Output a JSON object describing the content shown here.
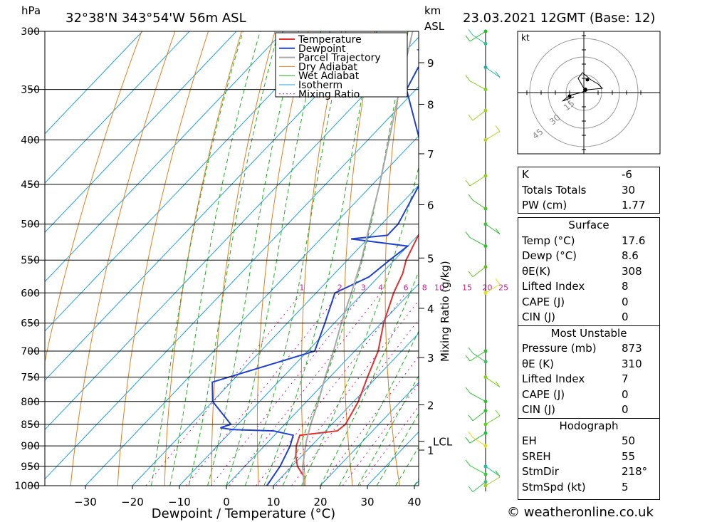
{
  "header": {
    "location": "32°38'N  343°54'W  56m  ASL",
    "datetime": "23.03.2021  12GMT  (Base: 12)",
    "pressure_unit": "hPa",
    "height_unit_top": "km",
    "height_unit_bottom": "ASL"
  },
  "colors": {
    "temperature": "#e03030",
    "dewpoint": "#2040d0",
    "parcel": "#a8a8a8",
    "dry_adiabat": "#e08020",
    "wet_adiabat": "#20b020",
    "isotherm": "#20a0e0",
    "mixing_ratio": "#d02090"
  },
  "chart_data": {
    "type": "line",
    "xlabel": "Dewpoint / Temperature (°C)",
    "ylabel_right": "Mixing Ratio (g/kg)",
    "xlim": [
      -40,
      40
    ],
    "ylim": [
      1000,
      300
    ],
    "y_scale": "log",
    "pressure_ticks": [
      300,
      350,
      400,
      450,
      500,
      550,
      600,
      650,
      700,
      750,
      800,
      850,
      900,
      950,
      1000
    ],
    "temp_ticks": [
      -30,
      -20,
      -10,
      0,
      10,
      20,
      30,
      40
    ],
    "height_km_ticks": [
      {
        "label": "9",
        "p": 326
      },
      {
        "label": "8",
        "p": 364
      },
      {
        "label": "7",
        "p": 415
      },
      {
        "label": "6",
        "p": 475
      },
      {
        "label": "5",
        "p": 547
      },
      {
        "label": "4",
        "p": 625
      },
      {
        "label": "3",
        "p": 712
      },
      {
        "label": "2",
        "p": 807
      },
      {
        "label": "1",
        "p": 910
      }
    ],
    "lcl": {
      "label": "LCL",
      "p": 889
    },
    "mixing_ratio_labels": [
      "1",
      "2",
      "3",
      "4",
      "6",
      "8",
      "10",
      "15",
      "20",
      "25"
    ],
    "legend": [
      "Temperature",
      "Dewpoint",
      "Parcel Trajectory",
      "Dry Adiabat",
      "Wet Adiabat",
      "Isotherm",
      "Mixing Ratio"
    ],
    "series": [
      {
        "name": "Temperature",
        "points": [
          [
            1000,
            16.5
          ],
          [
            975,
            14.5
          ],
          [
            950,
            11.2
          ],
          [
            925,
            8.8
          ],
          [
            900,
            6.8
          ],
          [
            875,
            5.4
          ],
          [
            865,
            12.5
          ],
          [
            850,
            12.9
          ],
          [
            800,
            11.0
          ],
          [
            750,
            8.0
          ],
          [
            700,
            5.0
          ],
          [
            650,
            0.5
          ],
          [
            600,
            -3.5
          ],
          [
            570,
            -5.5
          ],
          [
            550,
            -7.5
          ],
          [
            500,
            -11.0
          ],
          [
            450,
            -16.0
          ],
          [
            400,
            -22.5
          ],
          [
            350,
            -31.0
          ],
          [
            320,
            -37.0
          ],
          [
            300,
            -40.5
          ]
        ]
      },
      {
        "name": "Dewpoint",
        "points": [
          [
            1000,
            8.6
          ],
          [
            950,
            7.5
          ],
          [
            900,
            5.5
          ],
          [
            875,
            4.0
          ],
          [
            865,
            -1.0
          ],
          [
            862,
            -10.0
          ],
          [
            858,
            -13.0
          ],
          [
            855,
            -12.5
          ],
          [
            850,
            -11.5
          ],
          [
            800,
            -20.0
          ],
          [
            760,
            -24.0
          ],
          [
            700,
            -8.5
          ],
          [
            650,
            -12.0
          ],
          [
            600,
            -16.0
          ],
          [
            575,
            -12.0
          ],
          [
            550,
            -11.0
          ],
          [
            530,
            -10.0
          ],
          [
            520,
            -23.5
          ],
          [
            515,
            -16.5
          ],
          [
            500,
            -16.5
          ],
          [
            450,
            -20.0
          ],
          [
            400,
            -29.0
          ],
          [
            350,
            -42.0
          ],
          [
            330,
            -44.0
          ],
          [
            320,
            -42.0
          ],
          [
            315,
            -47.5
          ],
          [
            305,
            -43.0
          ],
          [
            300,
            -47.0
          ]
        ]
      },
      {
        "name": "Parcel Trajectory",
        "points": [
          [
            1000,
            16.5
          ],
          [
            950,
            12.3
          ],
          [
            900,
            8.8
          ],
          [
            889,
            8.0
          ],
          [
            850,
            5.5
          ],
          [
            800,
            2.5
          ],
          [
            750,
            -1.0
          ],
          [
            700,
            -4.5
          ],
          [
            650,
            -8.5
          ],
          [
            600,
            -12.5
          ],
          [
            550,
            -17.0
          ],
          [
            500,
            -22.5
          ],
          [
            450,
            -28.5
          ],
          [
            400,
            -35.5
          ],
          [
            350,
            -43.5
          ],
          [
            300,
            -52.5
          ]
        ]
      }
    ],
    "hodograph": {
      "unit": "kt",
      "ring_labels": [
        "15",
        "30",
        "45"
      ]
    }
  },
  "indices": {
    "rows": [
      {
        "k": "K",
        "v": "-6"
      },
      {
        "k": "Totals Totals",
        "v": "30"
      },
      {
        "k": "PW (cm)",
        "v": "1.77"
      }
    ]
  },
  "surface": {
    "title": "Surface",
    "rows": [
      {
        "k": "Temp (°C)",
        "v": "17.6"
      },
      {
        "k": "Dewp (°C)",
        "v": "8.6"
      },
      {
        "k": "θE(K)",
        "v": "308"
      },
      {
        "k": "Lifted Index",
        "v": "8"
      },
      {
        "k": "CAPE (J)",
        "v": "0"
      },
      {
        "k": "CIN (J)",
        "v": "0"
      }
    ]
  },
  "most_unstable": {
    "title": "Most Unstable",
    "rows": [
      {
        "k": "Pressure (mb)",
        "v": "873"
      },
      {
        "k": "θE (K)",
        "v": "310"
      },
      {
        "k": "Lifted Index",
        "v": "7"
      },
      {
        "k": "CAPE (J)",
        "v": "0"
      },
      {
        "k": "CIN (J)",
        "v": "0"
      }
    ]
  },
  "hodograph_box": {
    "title": "Hodograph",
    "rows": [
      {
        "k": "EH",
        "v": "50"
      },
      {
        "k": "SREH",
        "v": "55"
      },
      {
        "k": "StmDir",
        "v": "218°"
      },
      {
        "k": "StmSpd (kt)",
        "v": "5"
      }
    ]
  },
  "footer": {
    "credit": "© weatheronline.co.uk"
  }
}
